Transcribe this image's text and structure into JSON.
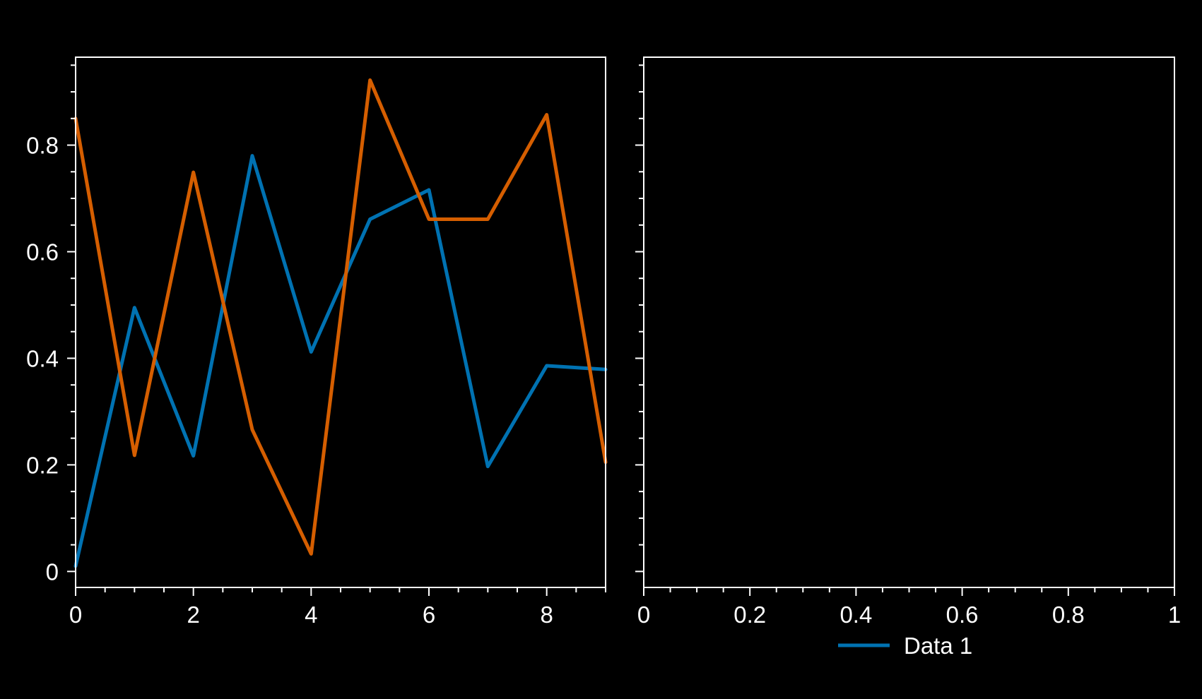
{
  "background": "#000000",
  "foreground": "#ffffff",
  "chart_data": [
    {
      "type": "line",
      "xlim": [
        0,
        9
      ],
      "ylim": [
        -0.03,
        0.965
      ],
      "x_ticks": [
        0,
        2,
        4,
        6,
        8
      ],
      "x_tick_labels": [
        "0",
        "2",
        "4",
        "6",
        "8"
      ],
      "x_minor_step": 0.5,
      "y_ticks": [
        0,
        0.2,
        0.4,
        0.6,
        0.8
      ],
      "y_tick_labels": [
        "0",
        "0.2",
        "0.4",
        "0.6",
        "0.8"
      ],
      "y_minor_step": 0.05,
      "grid": false,
      "x": [
        0,
        1,
        2,
        3,
        4,
        5,
        6,
        7,
        8,
        9
      ],
      "series": [
        {
          "color": "#0072b2",
          "values": [
            0.01,
            0.495,
            0.217,
            0.78,
            0.412,
            0.661,
            0.716,
            0.197,
            0.386,
            0.379
          ]
        },
        {
          "color": "#d55e00",
          "values": [
            0.85,
            0.218,
            0.749,
            0.266,
            0.033,
            0.922,
            0.661,
            0.661,
            0.857,
            0.205
          ]
        }
      ]
    },
    {
      "type": "line",
      "xlim": [
        0,
        1
      ],
      "ylim": [
        -0.03,
        0.965
      ],
      "x_ticks": [
        0,
        0.2,
        0.4,
        0.6,
        0.8,
        1
      ],
      "x_tick_labels": [
        "0",
        "0.2",
        "0.4",
        "0.6",
        "0.8",
        "1"
      ],
      "x_minor_step": 0.05,
      "y_ticks": [
        0,
        0.2,
        0.4,
        0.6,
        0.8
      ],
      "y_tick_labels": [],
      "y_minor_step": 0.05,
      "grid": false,
      "series": [],
      "legend": {
        "placement": "below",
        "entries": [
          {
            "label": "Data 1",
            "color": "#0072b2"
          }
        ]
      }
    }
  ]
}
